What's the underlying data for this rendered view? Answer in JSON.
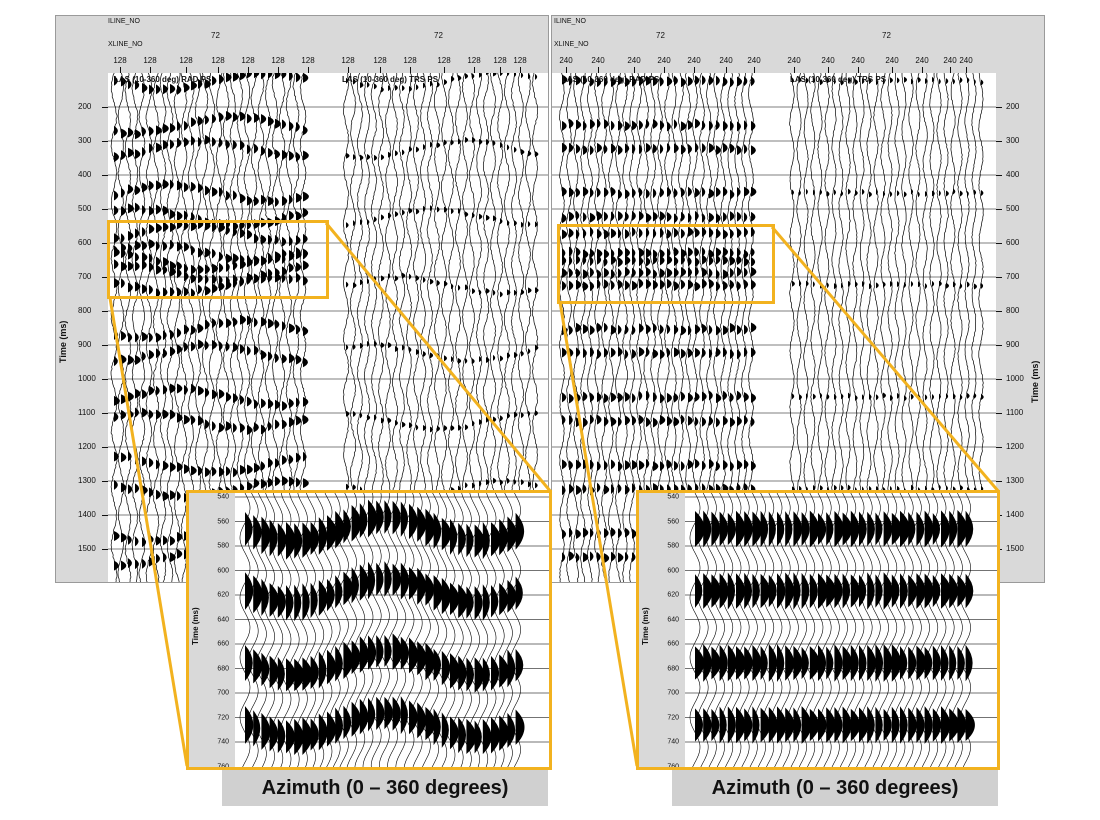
{
  "panels": [
    {
      "id": "left",
      "iline_label": "ILINE_NO",
      "xline_label": "XLINE_NO",
      "iline_values": [
        "72",
        "72"
      ],
      "xline_values": [
        "128",
        "128",
        "128",
        "128",
        "128",
        "128",
        "128",
        "128",
        "128",
        "128",
        "128",
        "128",
        "128",
        "128"
      ],
      "segments": [
        "LAS (10-360 deg) RAD PS",
        "LAS (10-360 deg) TRS PS"
      ],
      "time_ticks": [
        "200",
        "300",
        "400",
        "500",
        "600",
        "700",
        "800",
        "900",
        "1000",
        "1100",
        "1200",
        "1300",
        "1400",
        "1500"
      ],
      "axis_title": "Time (ms)"
    },
    {
      "id": "right",
      "iline_label": "ILINE_NO",
      "xline_label": "XLINE_NO",
      "iline_values": [
        "72",
        "72"
      ],
      "xline_values": [
        "240",
        "240",
        "240",
        "240",
        "240",
        "240",
        "240",
        "240",
        "240",
        "240",
        "240",
        "240",
        "240",
        "240"
      ],
      "segments": [
        "LAS (10-360 deg) RAD PS",
        "LAS (10-360 deg) TRS PS"
      ],
      "time_ticks": [
        "200",
        "300",
        "400",
        "500",
        "600",
        "700",
        "800",
        "900",
        "1000",
        "1100",
        "1200",
        "1300",
        "1400",
        "1500"
      ],
      "axis_title": "Time (ms)"
    }
  ],
  "zooms": [
    {
      "id": "left",
      "time_ticks": [
        "540",
        "560",
        "580",
        "600",
        "620",
        "640",
        "660",
        "680",
        "700",
        "720",
        "740",
        "760"
      ],
      "axis_title": "Time (ms)",
      "caption": "Azimuth (0 – 360 degrees)"
    },
    {
      "id": "right",
      "time_ticks": [
        "540",
        "560",
        "580",
        "600",
        "620",
        "640",
        "660",
        "680",
        "700",
        "720",
        "740",
        "760"
      ],
      "axis_title": "Time (ms)",
      "caption": "Azimuth (0 – 360 degrees)"
    }
  ],
  "colors": {
    "highlight": "#f2b21f",
    "panel_bg": "#d9d9d9",
    "trace": "#000000"
  }
}
